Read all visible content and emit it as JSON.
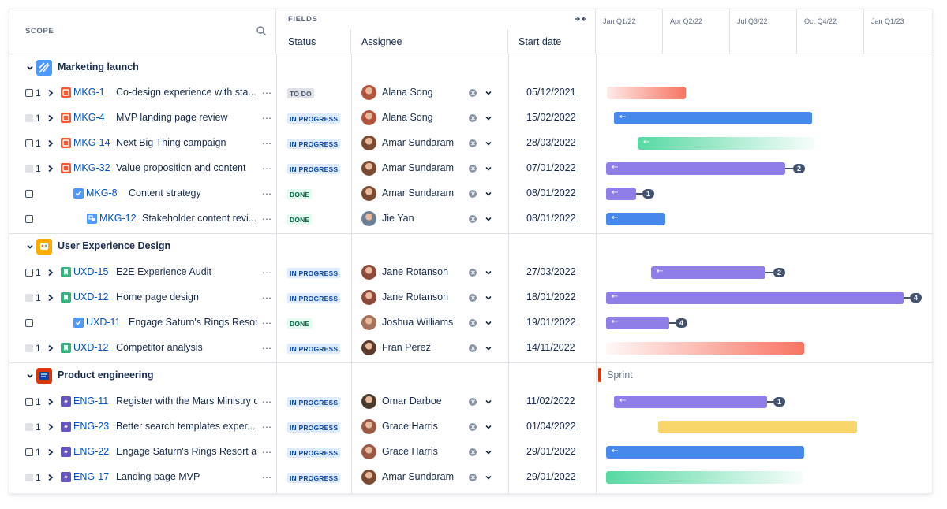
{
  "header": {
    "scope_label": "SCOPE",
    "fields_label": "FIELDS",
    "columns": {
      "status": "Status",
      "assignee": "Assignee",
      "start_date": "Start date"
    },
    "quarters": [
      "Jan Q1/22",
      "Apr Q2/22",
      "Jul Q3/22",
      "Oct Q4/22",
      "Jan Q1/23"
    ]
  },
  "groups": [
    {
      "title": "Marketing launch",
      "icon": "rocket-icon",
      "color": "#4c9aff"
    },
    {
      "title": "User Experience Design",
      "icon": "palette-icon",
      "color": "#ffab00"
    },
    {
      "title": "Product engineering",
      "icon": "gear-board-icon",
      "color": "#de350b"
    }
  ],
  "rows": [
    {
      "count": "1",
      "key": "MKG-1",
      "summary": "Co-design experience with sta...",
      "status": "TO DO",
      "assignee": "Alana Song",
      "start": "05/12/2021",
      "dep": ""
    },
    {
      "count": "1",
      "key": "MKG-4",
      "summary": "MVP landing page review",
      "status": "IN PROGRESS",
      "assignee": "Alana Song",
      "start": "15/02/2022",
      "dep": ""
    },
    {
      "count": "1",
      "key": "MKG-14",
      "summary": "Next Big Thing campaign",
      "status": "IN PROGRESS",
      "assignee": "Amar Sundaram",
      "start": "28/03/2022",
      "dep": ""
    },
    {
      "count": "1",
      "key": "MKG-32",
      "summary": "Value proposition and content",
      "status": "IN PROGRESS",
      "assignee": "Amar Sundaram",
      "start": "07/01/2022",
      "dep": "2"
    },
    {
      "count": "",
      "key": "MKG-8",
      "summary": "Content strategy",
      "status": "DONE",
      "assignee": "Amar Sundaram",
      "start": "08/01/2022",
      "dep": "1"
    },
    {
      "count": "",
      "key": "MKG-12",
      "summary": "Stakeholder content revi...",
      "status": "DONE",
      "assignee": "Jie Yan",
      "start": "08/01/2022",
      "dep": ""
    },
    {
      "count": "1",
      "key": "UXD-15",
      "summary": "E2E Experience Audit",
      "status": "IN PROGRESS",
      "assignee": "Jane Rotanson",
      "start": "27/03/2022",
      "dep": "2"
    },
    {
      "count": "1",
      "key": "UXD-12",
      "summary": "Home page design",
      "status": "IN PROGRESS",
      "assignee": "Jane Rotanson",
      "start": "18/01/2022",
      "dep": "4"
    },
    {
      "count": "",
      "key": "UXD-11",
      "summary": "Engage Saturn's Rings Resort a...",
      "status": "DONE",
      "assignee": "Joshua Williams",
      "start": "19/01/2022",
      "dep": "4"
    },
    {
      "count": "1",
      "key": "UXD-12",
      "summary": "Competitor analysis",
      "status": "IN PROGRESS",
      "assignee": "Fran Perez",
      "start": "14/11/2022",
      "dep": ""
    },
    {
      "count": "1",
      "key": "ENG-11",
      "summary": "Register with the Mars Ministry of",
      "status": "IN PROGRESS",
      "assignee": "Omar Darboe",
      "start": "11/02/2022",
      "dep": "1"
    },
    {
      "count": "1",
      "key": "ENG-23",
      "summary": "Better search templates exper...",
      "status": "IN PROGRESS",
      "assignee": "Grace Harris",
      "start": "01/04/2022",
      "dep": ""
    },
    {
      "count": "1",
      "key": "ENG-22",
      "summary": "Engage Saturn's Rings Resort as",
      "status": "IN PROGRESS",
      "assignee": "Grace Harris",
      "start": "29/01/2022",
      "dep": ""
    },
    {
      "count": "1",
      "key": "ENG-17",
      "summary": "Landing page MVP",
      "status": "IN PROGRESS",
      "assignee": "Amar Sundaram",
      "start": "29/01/2022",
      "dep": ""
    }
  ],
  "more_label": "...",
  "sprint_label": "Sprint",
  "colors": {
    "blue": "#4688ec",
    "purple": "#8f7ee7",
    "green": "#57d9a3",
    "red": "#f87462",
    "yellow": "#f8d66a",
    "sprint": "#de350b"
  }
}
